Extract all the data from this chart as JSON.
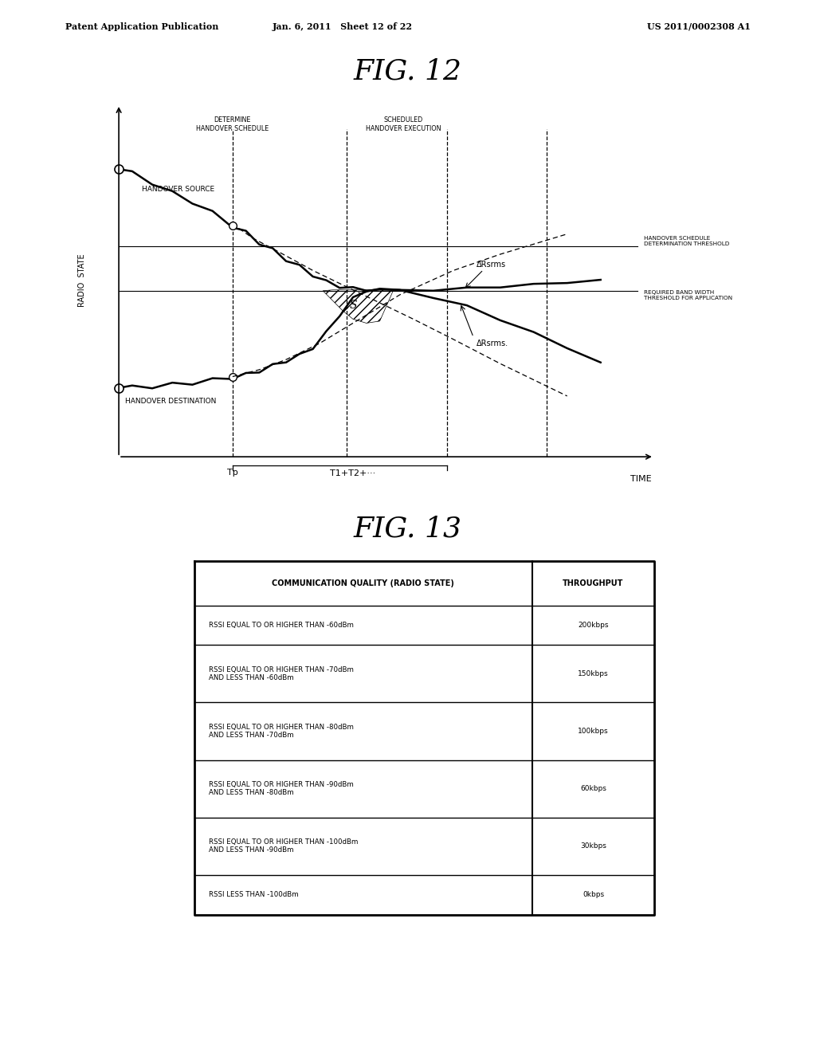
{
  "title_top_left": "Patent Application Publication",
  "title_top_mid": "Jan. 6, 2011   Sheet 12 of 22",
  "title_top_right": "US 2011/0002308 A1",
  "fig12_title": "FIG. 12",
  "fig13_title": "FIG. 13",
  "bg_color": "#ffffff",
  "table_header": [
    "COMMUNICATION QUALITY (RADIO STATE)",
    "THROUGHPUT"
  ],
  "table_rows": [
    [
      "RSSI EQUAL TO OR HIGHER THAN -60dBm",
      "200kbps"
    ],
    [
      "RSSI EQUAL TO OR HIGHER THAN -70dBm\nAND LESS THAN -60dBm",
      "150kbps"
    ],
    [
      "RSSI EQUAL TO OR HIGHER THAN -80dBm\nAND LESS THAN -70dBm",
      "100kbps"
    ],
    [
      "RSSI EQUAL TO OR HIGHER THAN -90dBm\nAND LESS THAN -80dBm",
      "60kbps"
    ],
    [
      "RSSI EQUAL TO OR HIGHER THAN -100dBm\nAND LESS THAN -90dBm",
      "30kbps"
    ],
    [
      "RSSI LESS THAN -100dBm",
      "0kbps"
    ]
  ]
}
